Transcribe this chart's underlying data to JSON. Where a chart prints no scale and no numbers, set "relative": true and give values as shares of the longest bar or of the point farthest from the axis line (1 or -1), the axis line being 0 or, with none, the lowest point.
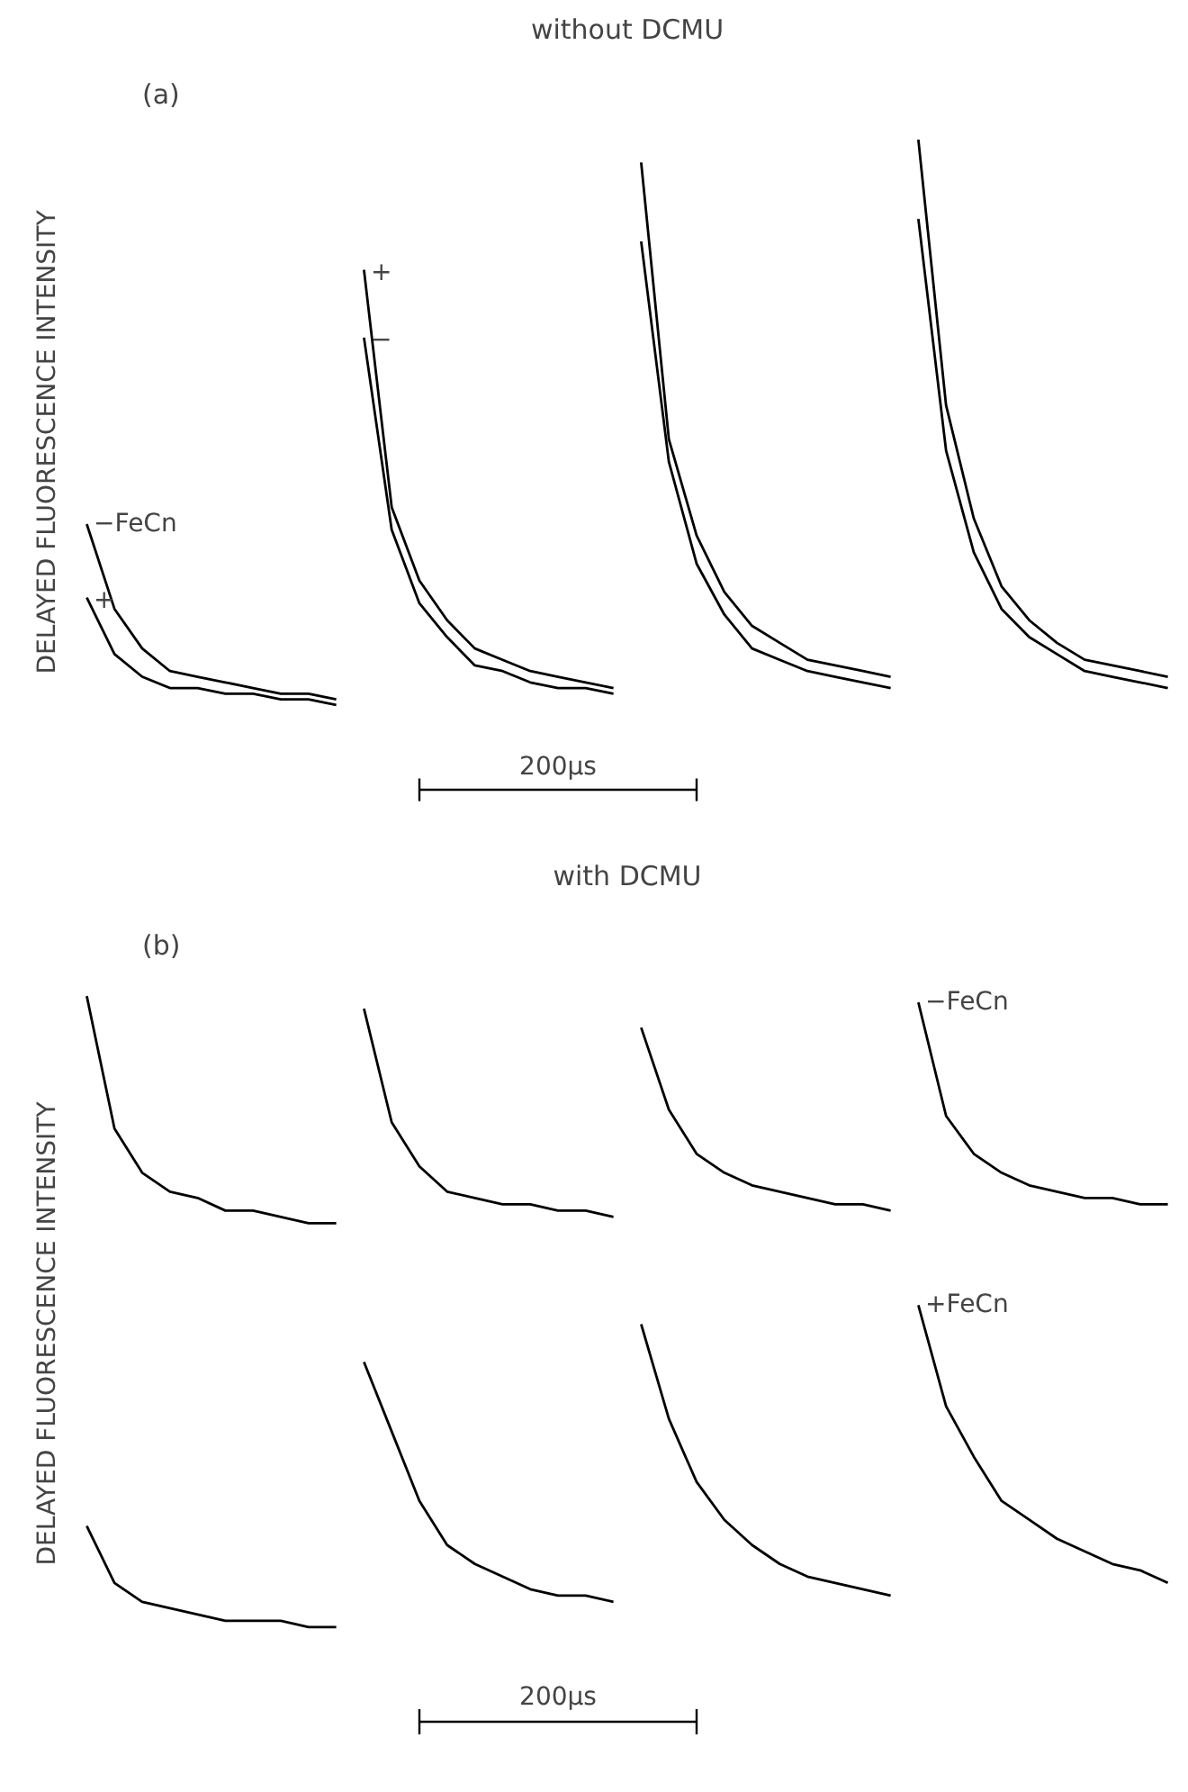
{
  "chart_data": [
    {
      "type": "line",
      "relative": true,
      "title": "without DCMU",
      "ylabel": "DELAYED FLUORESCENCE INTENSITY",
      "grid": false,
      "annotations": [
        "(a)",
        "200µs"
      ],
      "categories": [
        null,
        null,
        null,
        null,
        null,
        null,
        null,
        null,
        null,
        null,
        null,
        null,
        null,
        null,
        null,
        null,
        null,
        null,
        null,
        null,
        null,
        null,
        null,
        null,
        null,
        null,
        null,
        null,
        null,
        null,
        null,
        null,
        null,
        null,
        null,
        null,
        null,
        null,
        null,
        null
      ],
      "series": [
        {
          "name": "−FeCn",
          "color": "#000000",
          "values": [
            0.32,
            0.17,
            0.1,
            0.06,
            0.05,
            0.04,
            0.03,
            0.02,
            0.02,
            0.01,
            null,
            null,
            null,
            null,
            null,
            null,
            null,
            null,
            null,
            null,
            null,
            null,
            null,
            null,
            null,
            null,
            null,
            null,
            null,
            null,
            null,
            null,
            null,
            null,
            null,
            null,
            null,
            null,
            null,
            null
          ]
        },
        {
          "name": "+",
          "color": "#000000",
          "values": [
            0.19,
            0.09,
            0.05,
            0.03,
            0.03,
            0.02,
            0.02,
            0.01,
            0.01,
            0.0,
            null,
            null,
            null,
            null,
            null,
            null,
            null,
            null,
            null,
            null,
            null,
            null,
            null,
            null,
            null,
            null,
            null,
            null,
            null,
            null,
            null,
            null,
            null,
            null,
            null,
            null,
            null,
            null,
            null,
            null
          ]
        },
        {
          "name": "+",
          "color": "#000000",
          "values": [
            null,
            null,
            null,
            null,
            null,
            null,
            null,
            null,
            null,
            null,
            0.77,
            0.35,
            0.22,
            0.15,
            0.1,
            0.08,
            0.06,
            0.05,
            0.04,
            0.03,
            null,
            null,
            null,
            null,
            null,
            null,
            null,
            null,
            null,
            null,
            null,
            null,
            null,
            null,
            null,
            null,
            null,
            null,
            null,
            null
          ]
        },
        {
          "name": "−",
          "color": "#000000",
          "values": [
            null,
            null,
            null,
            null,
            null,
            null,
            null,
            null,
            null,
            null,
            0.65,
            0.31,
            0.18,
            0.12,
            0.07,
            0.06,
            0.04,
            0.03,
            0.03,
            0.02,
            null,
            null,
            null,
            null,
            null,
            null,
            null,
            null,
            null,
            null,
            null,
            null,
            null,
            null,
            null,
            null,
            null,
            null,
            null,
            null
          ]
        },
        {
          "color": "#000000",
          "values": [
            null,
            null,
            null,
            null,
            null,
            null,
            null,
            null,
            null,
            null,
            null,
            null,
            null,
            null,
            null,
            null,
            null,
            null,
            null,
            null,
            0.96,
            0.47,
            0.3,
            0.2,
            0.14,
            0.11,
            0.08,
            0.07,
            0.06,
            0.05,
            null,
            null,
            null,
            null,
            null,
            null,
            null,
            null,
            null,
            null
          ]
        },
        {
          "color": "#000000",
          "values": [
            null,
            null,
            null,
            null,
            null,
            null,
            null,
            null,
            null,
            null,
            null,
            null,
            null,
            null,
            null,
            null,
            null,
            null,
            null,
            null,
            0.82,
            0.43,
            0.25,
            0.16,
            0.1,
            0.08,
            0.06,
            0.05,
            0.04,
            0.03,
            null,
            null,
            null,
            null,
            null,
            null,
            null,
            null,
            null,
            null
          ]
        },
        {
          "color": "#000000",
          "values": [
            null,
            null,
            null,
            null,
            null,
            null,
            null,
            null,
            null,
            null,
            null,
            null,
            null,
            null,
            null,
            null,
            null,
            null,
            null,
            null,
            null,
            null,
            null,
            null,
            null,
            null,
            null,
            null,
            null,
            null,
            1.0,
            0.53,
            0.33,
            0.21,
            0.15,
            0.11,
            0.08,
            0.07,
            0.06,
            0.05
          ]
        },
        {
          "color": "#000000",
          "values": [
            null,
            null,
            null,
            null,
            null,
            null,
            null,
            null,
            null,
            null,
            null,
            null,
            null,
            null,
            null,
            null,
            null,
            null,
            null,
            null,
            null,
            null,
            null,
            null,
            null,
            null,
            null,
            null,
            null,
            null,
            0.86,
            0.45,
            0.27,
            0.17,
            0.12,
            0.09,
            0.06,
            0.05,
            0.04,
            0.03
          ]
        }
      ]
    },
    {
      "type": "line",
      "relative": true,
      "title": "with DCMU",
      "ylabel": "DELAYED FLUORESCENCE INTENSITY",
      "grid": false,
      "annotations": [
        "(b)",
        "200µs"
      ],
      "categories": [
        null,
        null,
        null,
        null,
        null,
        null,
        null,
        null,
        null,
        null,
        null,
        null,
        null,
        null,
        null,
        null,
        null,
        null,
        null,
        null,
        null,
        null,
        null,
        null,
        null,
        null,
        null,
        null,
        null,
        null,
        null,
        null,
        null,
        null,
        null,
        null,
        null,
        null,
        null,
        null
      ],
      "series": [
        {
          "color": "#000000",
          "values": [
            1.0,
            0.79,
            0.72,
            0.69,
            0.68,
            0.66,
            0.66,
            0.65,
            0.64,
            0.64,
            null,
            null,
            null,
            null,
            null,
            null,
            null,
            null,
            null,
            null,
            null,
            null,
            null,
            null,
            null,
            null,
            null,
            null,
            null,
            null,
            null,
            null,
            null,
            null,
            null,
            null,
            null,
            null,
            null,
            null
          ]
        },
        {
          "color": "#000000",
          "values": [
            null,
            null,
            null,
            null,
            null,
            null,
            null,
            null,
            null,
            null,
            0.98,
            0.8,
            0.73,
            0.69,
            0.68,
            0.67,
            0.67,
            0.66,
            0.66,
            0.65,
            null,
            null,
            null,
            null,
            null,
            null,
            null,
            null,
            null,
            null,
            null,
            null,
            null,
            null,
            null,
            null,
            null,
            null,
            null,
            null
          ]
        },
        {
          "color": "#000000",
          "values": [
            null,
            null,
            null,
            null,
            null,
            null,
            null,
            null,
            null,
            null,
            null,
            null,
            null,
            null,
            null,
            null,
            null,
            null,
            null,
            null,
            0.95,
            0.82,
            0.75,
            0.72,
            0.7,
            0.69,
            0.68,
            0.67,
            0.67,
            0.66,
            null,
            null,
            null,
            null,
            null,
            null,
            null,
            null,
            null,
            null
          ]
        },
        {
          "name": "−FeCn",
          "color": "#000000",
          "values": [
            null,
            null,
            null,
            null,
            null,
            null,
            null,
            null,
            null,
            null,
            null,
            null,
            null,
            null,
            null,
            null,
            null,
            null,
            null,
            null,
            null,
            null,
            null,
            null,
            null,
            null,
            null,
            null,
            null,
            null,
            0.99,
            0.81,
            0.75,
            0.72,
            0.7,
            0.69,
            0.68,
            0.68,
            0.67,
            0.67
          ]
        },
        {
          "color": "#000000",
          "values": [
            0.16,
            0.07,
            0.04,
            0.03,
            0.02,
            0.01,
            0.01,
            0.01,
            0.0,
            0.0,
            null,
            null,
            null,
            null,
            null,
            null,
            null,
            null,
            null,
            null,
            null,
            null,
            null,
            null,
            null,
            null,
            null,
            null,
            null,
            null,
            null,
            null,
            null,
            null,
            null,
            null,
            null,
            null,
            null,
            null
          ]
        },
        {
          "color": "#000000",
          "values": [
            null,
            null,
            null,
            null,
            null,
            null,
            null,
            null,
            null,
            null,
            0.42,
            0.31,
            0.2,
            0.13,
            0.1,
            0.08,
            0.06,
            0.05,
            0.05,
            0.04,
            null,
            null,
            null,
            null,
            null,
            null,
            null,
            null,
            null,
            null,
            null,
            null,
            null,
            null,
            null,
            null,
            null,
            null,
            null,
            null
          ]
        },
        {
          "color": "#000000",
          "values": [
            null,
            null,
            null,
            null,
            null,
            null,
            null,
            null,
            null,
            null,
            null,
            null,
            null,
            null,
            null,
            null,
            null,
            null,
            null,
            null,
            0.48,
            0.33,
            0.23,
            0.17,
            0.13,
            0.1,
            0.08,
            0.07,
            0.06,
            0.05,
            null,
            null,
            null,
            null,
            null,
            null,
            null,
            null,
            null,
            null
          ]
        },
        {
          "name": "+FeCn",
          "color": "#000000",
          "values": [
            null,
            null,
            null,
            null,
            null,
            null,
            null,
            null,
            null,
            null,
            null,
            null,
            null,
            null,
            null,
            null,
            null,
            null,
            null,
            null,
            null,
            null,
            null,
            null,
            null,
            null,
            null,
            null,
            null,
            null,
            0.51,
            0.35,
            0.27,
            0.2,
            0.17,
            0.14,
            0.12,
            0.1,
            0.09,
            0.07
          ]
        }
      ]
    }
  ]
}
